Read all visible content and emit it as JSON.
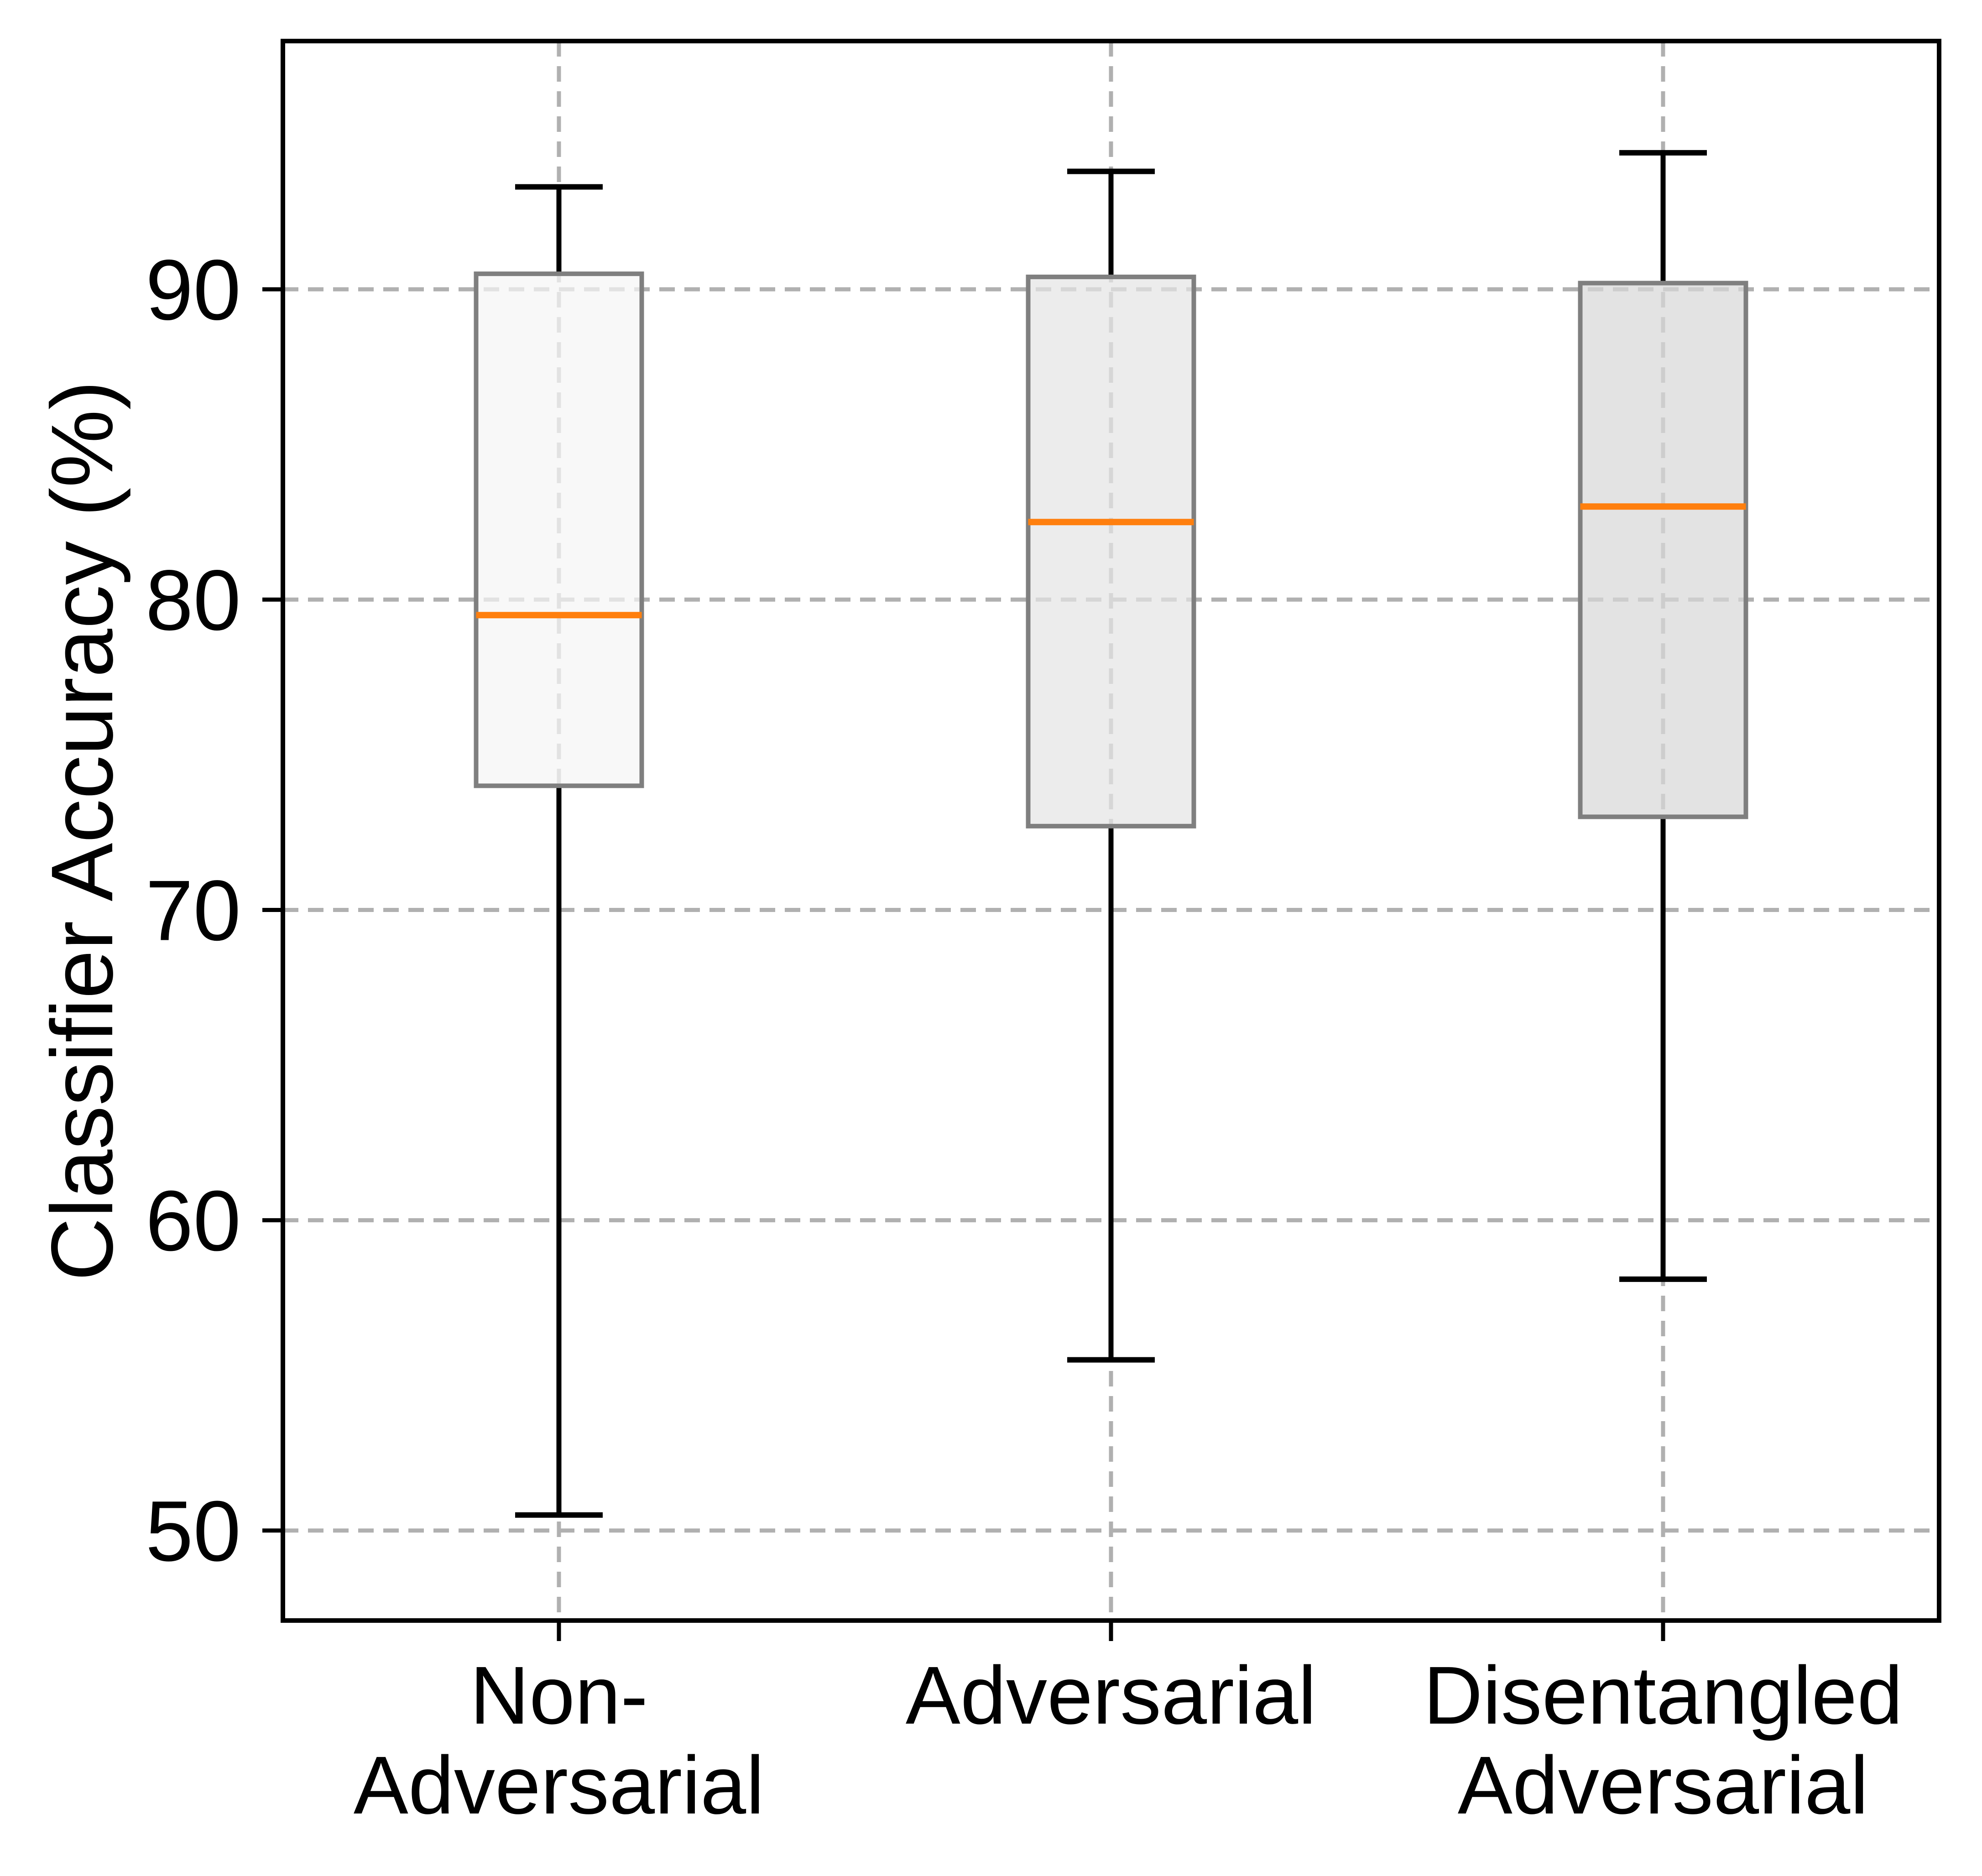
{
  "chart_data": {
    "type": "boxplot",
    "title": "",
    "xlabel": "",
    "ylabel": "Classifier Accuracy (%)",
    "categories": [
      "Non-\nAdversarial",
      "Adversarial",
      "Disentangled\nAdversarial"
    ],
    "category_lines": [
      [
        "Non-",
        "Adversarial"
      ],
      [
        "Adversarial"
      ],
      [
        "Disentangled",
        "Adversarial"
      ]
    ],
    "series": [
      {
        "name": "Non-Adversarial",
        "whisker_low": 50.5,
        "q1": 74.0,
        "median": 79.5,
        "q3": 90.5,
        "whisker_high": 93.3
      },
      {
        "name": "Adversarial",
        "whisker_low": 55.5,
        "q1": 72.7,
        "median": 82.5,
        "q3": 90.4,
        "whisker_high": 93.8
      },
      {
        "name": "Disentangled Adversarial",
        "whisker_low": 58.1,
        "q1": 73.0,
        "median": 83.0,
        "q3": 90.2,
        "whisker_high": 94.4
      }
    ],
    "yticks": [
      50,
      60,
      70,
      80,
      90
    ],
    "ytick_labels": [
      "50",
      "60",
      "70",
      "80",
      "90"
    ],
    "ylim": [
      47.1,
      98.0
    ],
    "xlim": [
      0.5,
      3.5
    ],
    "grid": true,
    "grid_style": "dashed",
    "legend": null,
    "colors": {
      "median": "#ff7f0e",
      "box_edge": "#7f7f7f",
      "box_fills": [
        "#f5f5f5",
        "#e4e4e4",
        "#d8d8d8"
      ],
      "whisker": "#000000",
      "grid": "#b0b0b0",
      "spine": "#000000",
      "text": "#000000",
      "background": "#ffffff"
    }
  }
}
